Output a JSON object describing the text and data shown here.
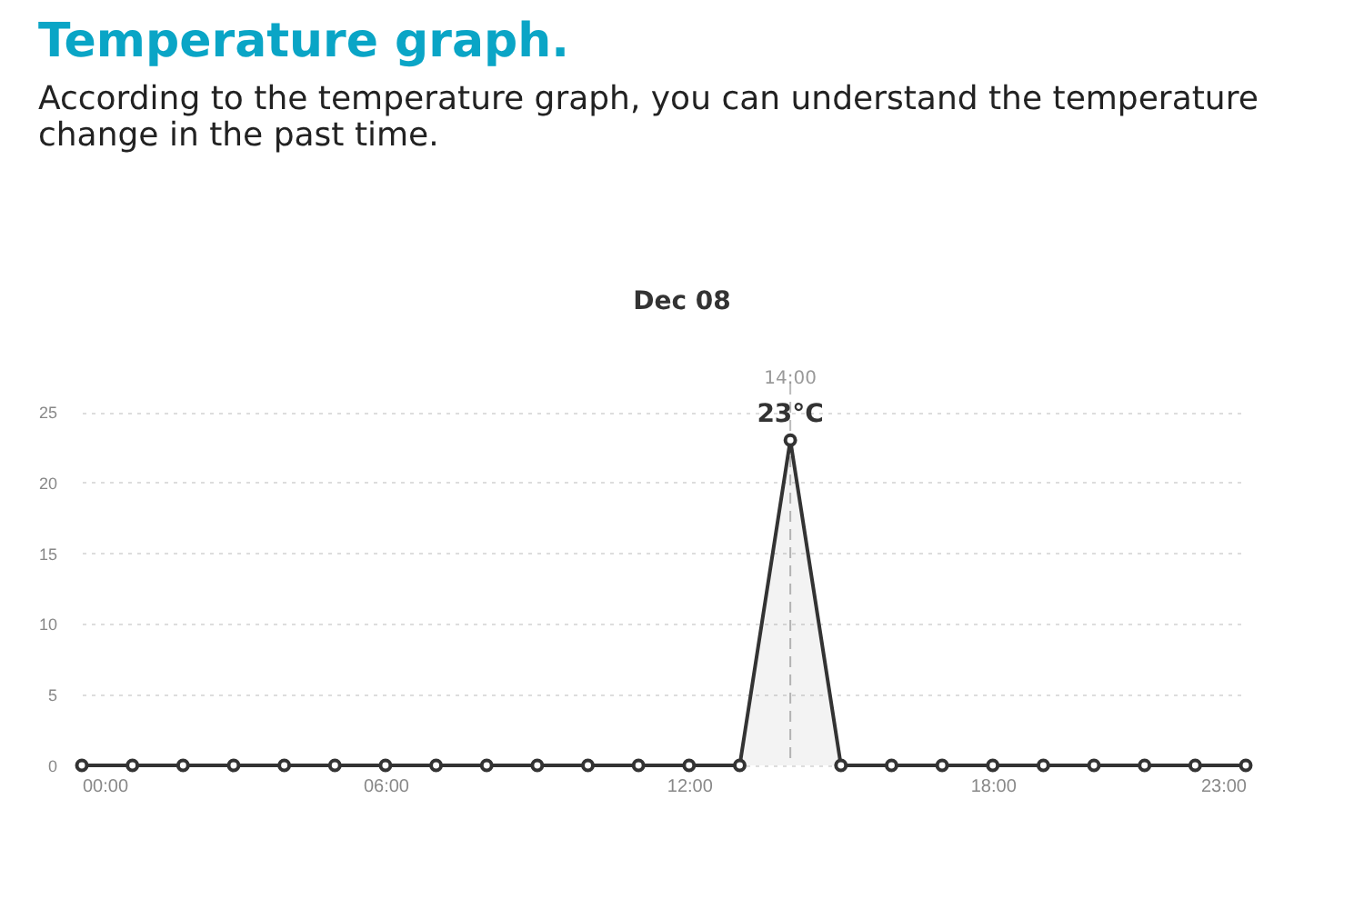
{
  "chart_data": {
    "type": "area",
    "title": "Temperature graph.",
    "subtitle": "According to the temperature graph, you can understand the temperature change in the past time.",
    "annotations": [
      "Dec 08",
      "14:00",
      {
        "text": "23°C",
        "x": 14,
        "y": 23
      }
    ],
    "x": [
      0,
      1,
      2,
      3,
      4,
      5,
      6,
      7,
      8,
      9,
      10,
      11,
      12,
      13,
      14,
      15,
      16,
      17,
      18,
      19,
      20,
      21,
      22,
      23
    ],
    "series": [
      {
        "color": "#333333",
        "values": [
          0,
          0,
          0,
          0,
          0,
          0,
          0,
          0,
          0,
          0,
          0,
          0,
          0,
          0,
          23,
          0,
          0,
          0,
          0,
          0,
          0,
          0,
          0,
          0
        ]
      }
    ],
    "xlim": [
      0,
      23
    ],
    "xticks": [
      {
        "value": 0,
        "label": "00:00"
      },
      {
        "value": 6,
        "label": "06:00"
      },
      {
        "value": 12,
        "label": "12:00"
      },
      {
        "value": 18,
        "label": "18:00"
      },
      {
        "value": 23,
        "label": "23:00"
      }
    ],
    "ylim": [
      0,
      27
    ],
    "yticks": [
      0,
      5,
      10,
      15,
      20,
      25
    ],
    "ref_lines": [
      {
        "axis": "x",
        "value": 14,
        "line_style": "dashed",
        "color": "#bbbbbb"
      }
    ],
    "grid": "y",
    "marker": "circle",
    "line_style": "solid"
  }
}
